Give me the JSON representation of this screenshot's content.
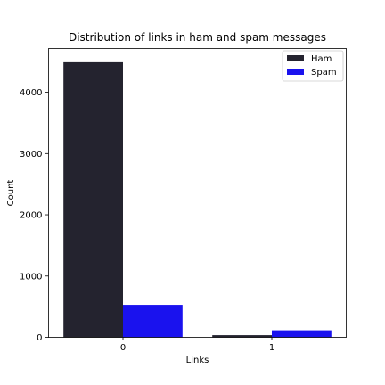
{
  "chart_data": {
    "type": "bar",
    "title": "Distribution of links in ham and spam messages",
    "xlabel": "Links",
    "ylabel": "Count",
    "categories": [
      "0",
      "1"
    ],
    "series": [
      {
        "name": "Ham",
        "values": [
          4490,
          35
        ],
        "color": "#24232f"
      },
      {
        "name": "Spam",
        "values": [
          530,
          115
        ],
        "color": "#1a12ee"
      }
    ],
    "yticks": [
      0,
      1000,
      2000,
      3000,
      4000
    ],
    "ylim": [
      0,
      4714
    ],
    "grid": false,
    "legend_position": "top-right"
  }
}
